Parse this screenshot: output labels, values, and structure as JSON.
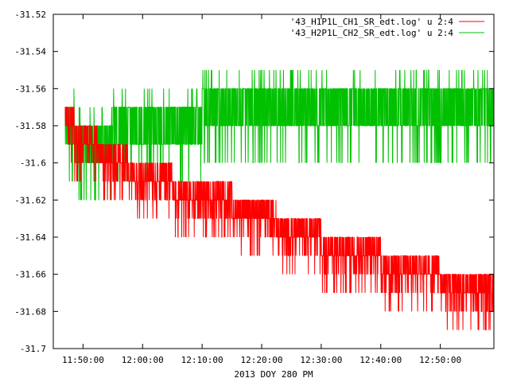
{
  "chart_data": {
    "type": "line",
    "title": "",
    "xlabel": "2013 DOY 280 PM",
    "ylabel": "",
    "ylim": [
      -31.7,
      -31.52
    ],
    "xlim": [
      "11:45:00",
      "12:59:00"
    ],
    "grid": false,
    "legend_position": "top-right",
    "y_ticks": [
      "-31.52",
      "-31.54",
      "-31.56",
      "-31.58",
      "-31.6",
      "-31.62",
      "-31.64",
      "-31.66",
      "-31.68",
      "-31.7"
    ],
    "x_ticks": [
      "11:50:00",
      "12:00:00",
      "12:10:00",
      "12:20:00",
      "12:30:00",
      "12:40:00",
      "12:50:00"
    ],
    "series": [
      {
        "name": "'43_H1P1L_CH1_SR_edt.log' u 2:4",
        "color": "#ff0000",
        "x": [
          "11:47:00",
          "11:50:00",
          "11:55:00",
          "12:00:00",
          "12:05:00",
          "12:10:00",
          "12:15:00",
          "12:20:00",
          "12:25:00",
          "12:30:00",
          "12:35:00",
          "12:40:00",
          "12:45:00",
          "12:50:00",
          "12:55:00",
          "12:59:00"
        ],
        "values": [
          -31.58,
          -31.59,
          -31.6,
          -31.61,
          -31.615,
          -31.62,
          -31.625,
          -31.63,
          -31.64,
          -31.645,
          -31.65,
          -31.655,
          -31.66,
          -31.665,
          -31.67,
          -31.675
        ]
      },
      {
        "name": "'43_H2P1L_CH2_SR_edt.log' u 2:4",
        "color": "#00c000",
        "x": [
          "11:47:00",
          "11:50:00",
          "11:55:00",
          "12:00:00",
          "12:05:00",
          "12:10:00",
          "12:15:00",
          "12:20:00",
          "12:25:00",
          "12:30:00",
          "12:35:00",
          "12:40:00",
          "12:45:00",
          "12:50:00",
          "12:55:00",
          "12:59:00"
        ],
        "values": [
          -31.57,
          -31.58,
          -31.575,
          -31.57,
          -31.57,
          -31.565,
          -31.565,
          -31.565,
          -31.56,
          -31.56,
          -31.56,
          -31.56,
          -31.56,
          -31.56,
          -31.56,
          -31.56
        ]
      }
    ]
  }
}
